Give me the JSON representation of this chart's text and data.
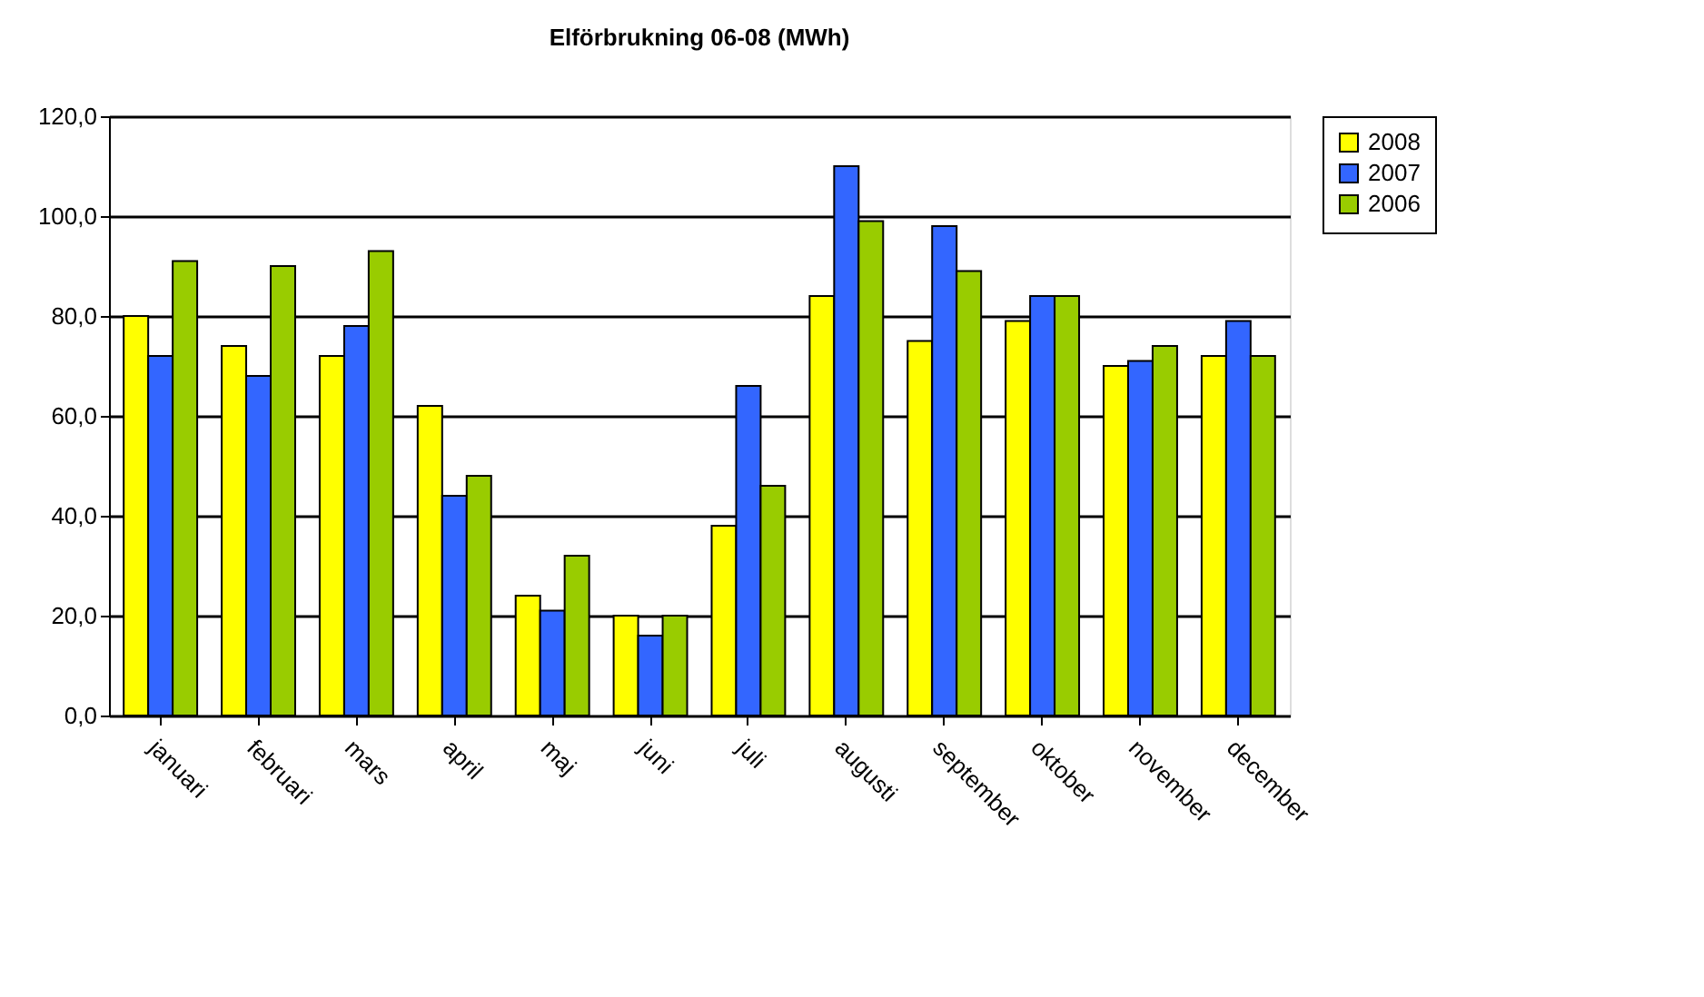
{
  "chart_data": {
    "type": "bar",
    "title": "Elförbrukning 06-08 (MWh)",
    "categories": [
      "januari",
      "februari",
      "mars",
      "april",
      "maj",
      "juni",
      "juli",
      "augusti",
      "september",
      "oktober",
      "november",
      "december"
    ],
    "series": [
      {
        "name": "2008",
        "color": "#ffff00",
        "values": [
          80,
          74,
          72,
          62,
          24,
          20,
          38,
          84,
          75,
          79,
          70,
          72
        ]
      },
      {
        "name": "2007",
        "color": "#3366ff",
        "values": [
          72,
          68,
          78,
          44,
          21,
          16,
          66,
          110,
          98,
          84,
          71,
          79
        ]
      },
      {
        "name": "2006",
        "color": "#99cc00",
        "values": [
          91,
          90,
          93,
          48,
          32,
          20,
          46,
          99,
          89,
          84,
          74,
          72
        ]
      }
    ],
    "ylim": [
      0,
      120
    ],
    "yticks": [
      {
        "value": 0,
        "label": "0,0"
      },
      {
        "value": 20,
        "label": "20,0"
      },
      {
        "value": 40,
        "label": "40,0"
      },
      {
        "value": 60,
        "label": "60,0"
      },
      {
        "value": 80,
        "label": "80,0"
      },
      {
        "value": 100,
        "label": "100,0"
      },
      {
        "value": 120,
        "label": "120,0"
      }
    ],
    "grid": "y",
    "legend": "right"
  }
}
